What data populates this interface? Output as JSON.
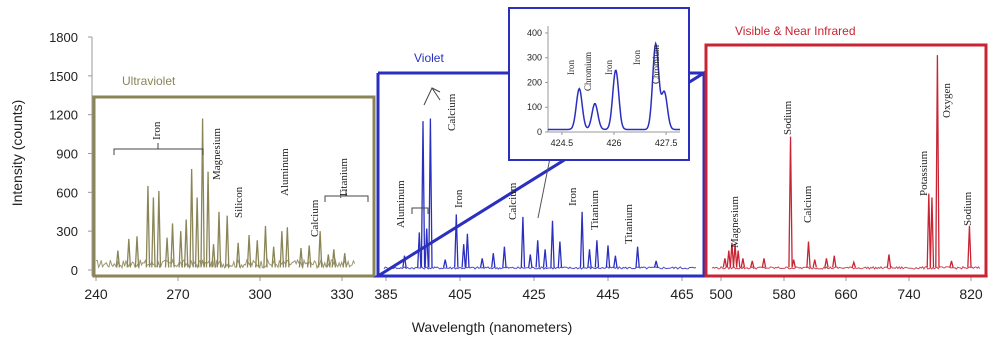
{
  "chart_data": {
    "type": "line",
    "title": "",
    "xlabel": "Wavelength (nanometers)",
    "ylabel": "Intensity (counts)",
    "y_ticks": [
      "0",
      "300",
      "600",
      "900",
      "1200",
      "1500",
      "1800"
    ],
    "ylim": [
      0,
      1800
    ],
    "panels": [
      {
        "name": "Ultraviolet",
        "color": "#8a8457",
        "x_ticks": [
          "240",
          "270",
          "300",
          "330"
        ],
        "xlim": [
          240,
          335
        ],
        "peaks": [
          {
            "x": 248,
            "y": 150
          },
          {
            "x": 252,
            "y": 240
          },
          {
            "x": 255,
            "y": 260
          },
          {
            "x": 259,
            "y": 650
          },
          {
            "x": 261,
            "y": 560
          },
          {
            "x": 263,
            "y": 610
          },
          {
            "x": 266,
            "y": 250
          },
          {
            "x": 268,
            "y": 360
          },
          {
            "x": 271,
            "y": 300
          },
          {
            "x": 273,
            "y": 390
          },
          {
            "x": 275,
            "y": 780
          },
          {
            "x": 277,
            "y": 560
          },
          {
            "x": 279,
            "y": 1170
          },
          {
            "x": 281,
            "y": 760
          },
          {
            "x": 283,
            "y": 200
          },
          {
            "x": 285,
            "y": 450
          },
          {
            "x": 288,
            "y": 420
          },
          {
            "x": 292,
            "y": 210
          },
          {
            "x": 296,
            "y": 270
          },
          {
            "x": 299,
            "y": 230
          },
          {
            "x": 302,
            "y": 340
          },
          {
            "x": 305,
            "y": 180
          },
          {
            "x": 308,
            "y": 300
          },
          {
            "x": 310,
            "y": 330
          },
          {
            "x": 315,
            "y": 170
          },
          {
            "x": 318,
            "y": 190
          },
          {
            "x": 322,
            "y": 300
          },
          {
            "x": 325,
            "y": 120
          },
          {
            "x": 327,
            "y": 160
          },
          {
            "x": 331,
            "y": 130
          }
        ],
        "annotations": [
          "Iron",
          "Magnesium",
          "Silicon",
          "Aluminum",
          "Calcium",
          "Titanium"
        ]
      },
      {
        "name": "Violet",
        "color": "#2a2fbf",
        "x_ticks": [
          "385",
          "405",
          "425",
          "445",
          "465"
        ],
        "xlim": [
          383,
          472
        ],
        "peaks": [
          {
            "x": 390,
            "y": 110
          },
          {
            "x": 394,
            "y": 290
          },
          {
            "x": 395,
            "y": 1150
          },
          {
            "x": 396,
            "y": 320
          },
          {
            "x": 397,
            "y": 1170
          },
          {
            "x": 401,
            "y": 80
          },
          {
            "x": 404,
            "y": 430
          },
          {
            "x": 406,
            "y": 200
          },
          {
            "x": 407,
            "y": 280
          },
          {
            "x": 411,
            "y": 90
          },
          {
            "x": 414,
            "y": 130
          },
          {
            "x": 417,
            "y": 180
          },
          {
            "x": 422,
            "y": 410
          },
          {
            "x": 424,
            "y": 120
          },
          {
            "x": 426,
            "y": 230
          },
          {
            "x": 428,
            "y": 160
          },
          {
            "x": 430,
            "y": 380
          },
          {
            "x": 432,
            "y": 220
          },
          {
            "x": 438,
            "y": 450
          },
          {
            "x": 440,
            "y": 160
          },
          {
            "x": 442,
            "y": 230
          },
          {
            "x": 445,
            "y": 190
          },
          {
            "x": 447,
            "y": 110
          },
          {
            "x": 453,
            "y": 180
          },
          {
            "x": 458,
            "y": 70
          }
        ],
        "annotations": [
          "Aluminum",
          "Calcium",
          "Iron",
          "Calcium",
          "Iron",
          "Titanium",
          "Titanium"
        ]
      },
      {
        "name": "Visible  & Near Infrared",
        "color": "#c82433",
        "x_ticks": [
          "500",
          "580",
          "660",
          "740",
          "820"
        ],
        "xlim": [
          488,
          835
        ],
        "peaks": [
          {
            "x": 505,
            "y": 90
          },
          {
            "x": 510,
            "y": 150
          },
          {
            "x": 514,
            "y": 210
          },
          {
            "x": 518,
            "y": 200
          },
          {
            "x": 522,
            "y": 150
          },
          {
            "x": 528,
            "y": 90
          },
          {
            "x": 540,
            "y": 70
          },
          {
            "x": 555,
            "y": 90
          },
          {
            "x": 589,
            "y": 1030
          },
          {
            "x": 593,
            "y": 80
          },
          {
            "x": 612,
            "y": 220
          },
          {
            "x": 620,
            "y": 80
          },
          {
            "x": 635,
            "y": 90
          },
          {
            "x": 645,
            "y": 110
          },
          {
            "x": 670,
            "y": 60
          },
          {
            "x": 715,
            "y": 120
          },
          {
            "x": 766,
            "y": 590
          },
          {
            "x": 770,
            "y": 560
          },
          {
            "x": 777,
            "y": 1660
          },
          {
            "x": 795,
            "y": 70
          },
          {
            "x": 818,
            "y": 340
          }
        ],
        "annotations": [
          "Magnesium",
          "Sodium",
          "Calcium",
          "Potassium",
          "Oxygen",
          "Sodium"
        ]
      }
    ],
    "inset": {
      "x_ticks": [
        "424.5",
        "426",
        "427.5"
      ],
      "y_ticks": [
        "0",
        "100",
        "200",
        "300",
        "400"
      ],
      "xlim": [
        424.1,
        427.9
      ],
      "ylim": [
        0,
        420
      ],
      "peaks": [
        {
          "x": 425.0,
          "y": 165
        },
        {
          "x": 425.45,
          "y": 105
        },
        {
          "x": 426.05,
          "y": 240
        },
        {
          "x": 427.2,
          "y": 345
        },
        {
          "x": 427.45,
          "y": 150
        }
      ],
      "annotations": [
        "Iron",
        "Chromium",
        "Iron",
        "Iron",
        "Chromium"
      ]
    }
  }
}
